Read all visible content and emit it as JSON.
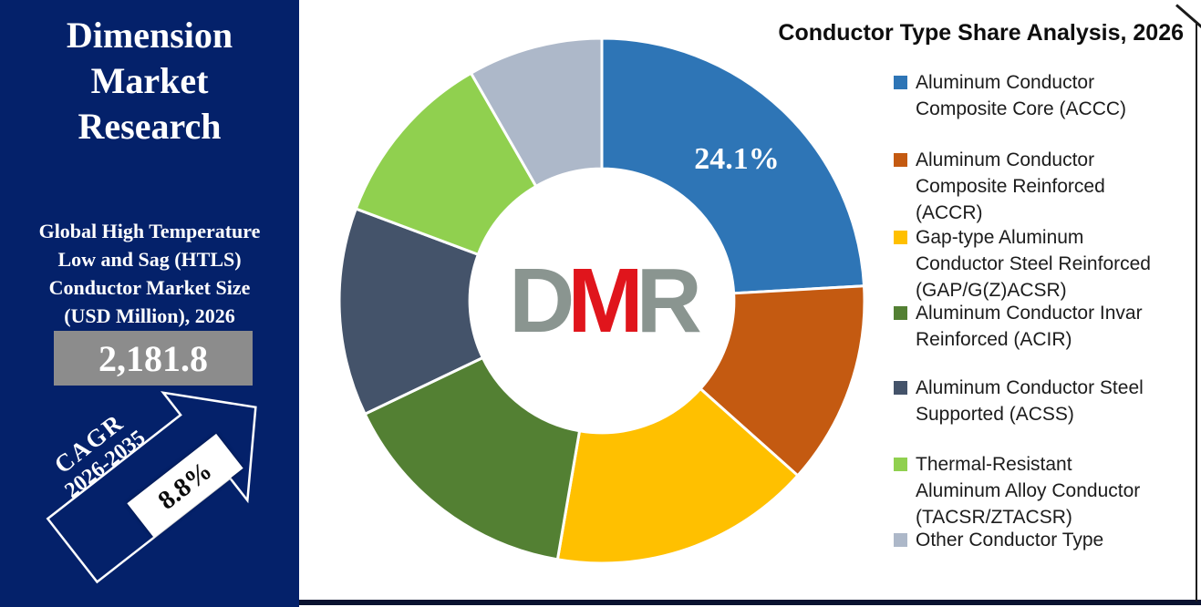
{
  "sidebar": {
    "title_lines": [
      "Dimension",
      "Market",
      "Research"
    ],
    "market_label_lines": [
      "Global High Temperature",
      "Low and Sag (HTLS)",
      "Conductor Market Size",
      "(USD Million), 2026"
    ],
    "market_value": "2,181.8",
    "cagr_label": "CAGR",
    "cagr_period": "2026-2035",
    "cagr_value": "8.8%",
    "background_color": "#04216A",
    "value_box_color": "#8C8C8C"
  },
  "logo": {
    "d": "D",
    "m": "M",
    "r": "R",
    "red": "#E0151C",
    "gray": "#8A9590"
  },
  "chart": {
    "title": "Conductor Type Share Analysis, 2026",
    "highlight_label": "24.1%"
  },
  "chart_data": {
    "type": "pie",
    "subtype": "donut",
    "title": "Conductor Type Share Analysis, 2026",
    "categories": [
      "Aluminum Conductor Composite Core (ACCC)",
      "Aluminum Conductor Composite Reinforced (ACCR)",
      "Gap-type Aluminum Conductor Steel Reinforced (GAP/G(Z)ACSR)",
      "Aluminum Conductor Invar Reinforced (ACIR)",
      "Aluminum Conductor Steel Supported (ACSS)",
      "Thermal-Resistant Aluminum Alloy Conductor (TACSR/ZTACSR)",
      "Other Conductor Type"
    ],
    "values": [
      24.1,
      12.5,
      16.1,
      15.2,
      12.8,
      11.0,
      8.3
    ],
    "unit": "%",
    "colors": [
      "#2E75B6",
      "#C45A11",
      "#FFC000",
      "#538033",
      "#44536A",
      "#90D04F",
      "#ADB8C9"
    ],
    "data_labels_shown": [
      "24.1%",
      null,
      null,
      null,
      null,
      null,
      null
    ],
    "start_angle_deg": 0,
    "direction": "clockwise",
    "inner_radius_ratio": 0.503,
    "legend_position": "right",
    "note": "Only the ACCC slice is labeled on-chart (24.1%); remaining slice values are estimated from arc angles."
  },
  "legend": {
    "items": [
      {
        "label": "Aluminum Conductor\nComposite Core (ACCC)",
        "color": "#2E75B6"
      },
      {
        "label": "Aluminum Conductor\nComposite Reinforced\n(ACCR)",
        "color": "#C45A11"
      },
      {
        "label": "Gap-type Aluminum\nConductor Steel Reinforced\n(GAP/G(Z)ACSR)",
        "color": "#FFC000"
      },
      {
        "label": "Aluminum Conductor Invar\nReinforced (ACIR)",
        "color": "#538033"
      },
      {
        "label": "Aluminum Conductor Steel\nSupported (ACSS)",
        "color": "#44536A"
      },
      {
        "label": "Thermal-Resistant\nAluminum Alloy Conductor\n(TACSR/ZTACSR)",
        "color": "#90D04F"
      },
      {
        "label": "Other Conductor Type",
        "color": "#ADB8C9"
      }
    ]
  }
}
